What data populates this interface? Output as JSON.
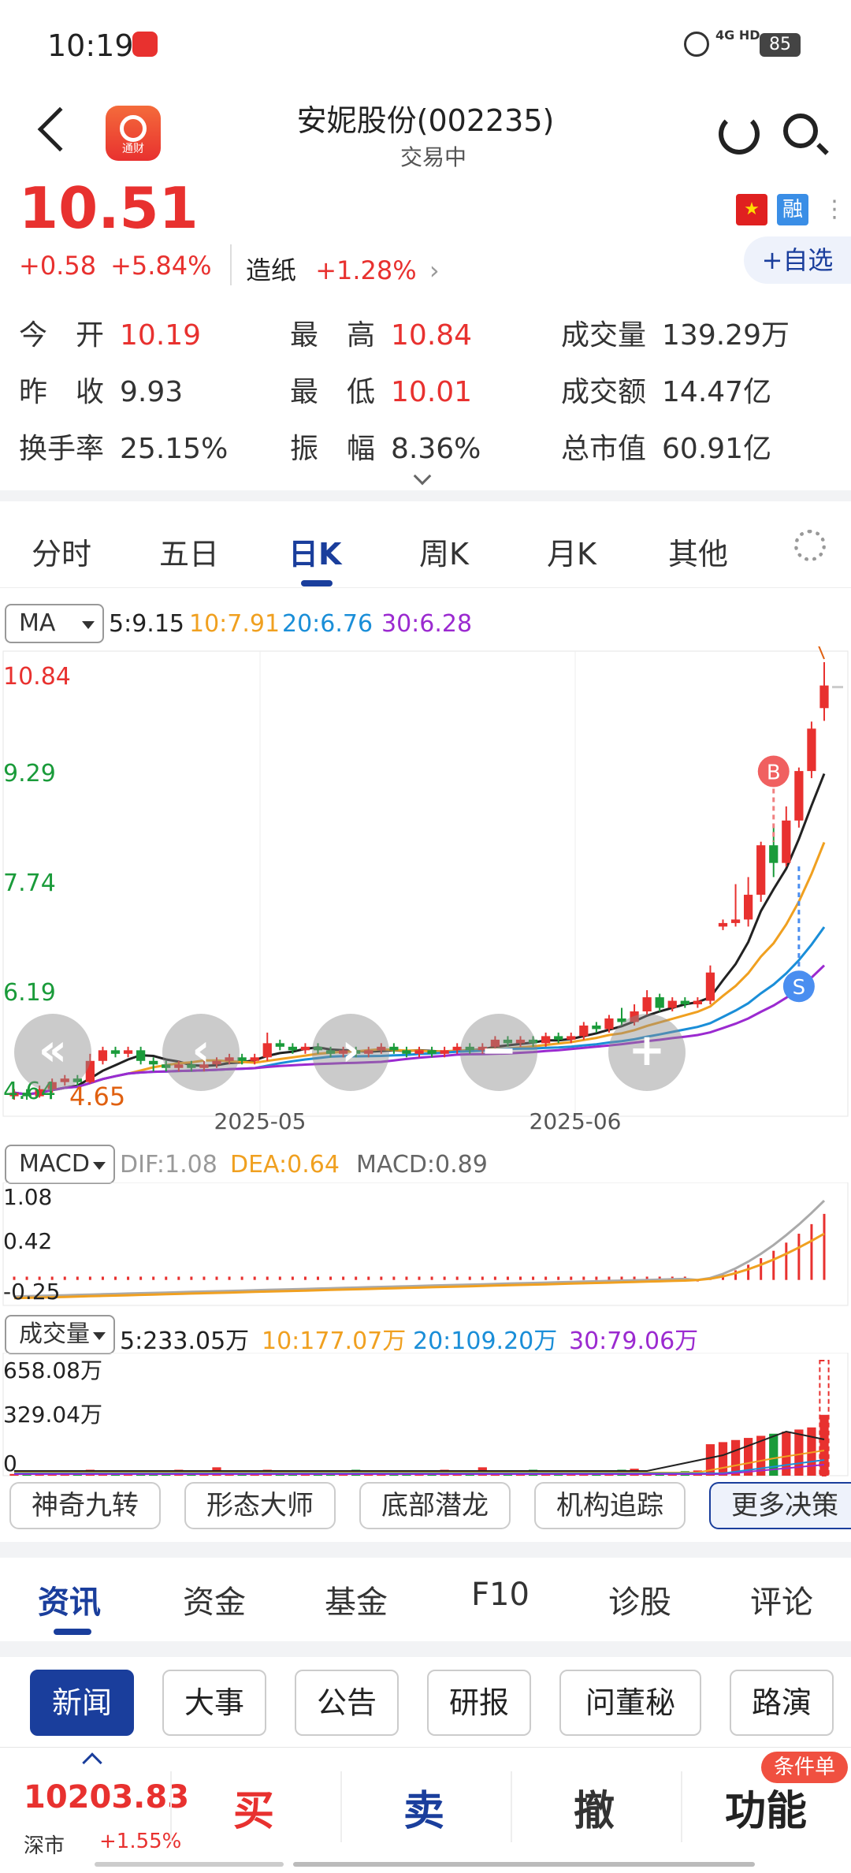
{
  "status": {
    "time": "10:19",
    "network": "4G HD",
    "battery": "85"
  },
  "header": {
    "title": "安妮股份(002235)",
    "subtitle": "交易中",
    "logo_text": "通财"
  },
  "quote": {
    "price": "10.51",
    "change": "+0.58",
    "change_pct": "+5.84%",
    "sector_name": "造纸",
    "sector_pct": "+1.28%",
    "rong": "融",
    "add_watch": "+自选",
    "stats": [
      {
        "label": "今　开",
        "value": "10.19",
        "color": "red"
      },
      {
        "label": "最　高",
        "value": "10.84",
        "color": "red"
      },
      {
        "label": "成交量",
        "value": "139.29万",
        "color": "plain"
      },
      {
        "label": "昨　收",
        "value": "9.93",
        "color": "plain"
      },
      {
        "label": "最　低",
        "value": "10.01",
        "color": "red"
      },
      {
        "label": "成交额",
        "value": "14.47亿",
        "color": "plain"
      },
      {
        "label": "换手率",
        "value": "25.15%",
        "color": "plain"
      },
      {
        "label": "振　幅",
        "value": "8.36%",
        "color": "plain"
      },
      {
        "label": "总市值",
        "value": "60.91亿",
        "color": "plain"
      }
    ]
  },
  "chart_tabs": [
    "分时",
    "五日",
    "日K",
    "周K",
    "月K",
    "其他"
  ],
  "ma": {
    "selector": "MA",
    "items": [
      {
        "text": "5:9.15",
        "color": "#222222"
      },
      {
        "text": "10:7.91",
        "color": "#f0a020"
      },
      {
        "text": "20:6.76",
        "color": "#1a8ed8"
      },
      {
        "text": "30:6.28",
        "color": "#9b2ad0"
      }
    ]
  },
  "chart_data": {
    "type": "candlestick",
    "price_axis": [
      "10.84",
      "9.29",
      "7.74",
      "6.19",
      "4.64"
    ],
    "date_axis": [
      "2025-05",
      "2025-06"
    ],
    "high_label": "10.84",
    "low_label": "4.65",
    "buy_marker": "B",
    "sell_marker": "S",
    "candles": [
      [
        4.7,
        4.75,
        4.65,
        4.8
      ],
      [
        4.75,
        4.7,
        4.65,
        4.8
      ],
      [
        4.7,
        4.8,
        4.68,
        4.85
      ],
      [
        4.8,
        4.9,
        4.75,
        4.95
      ],
      [
        4.9,
        4.95,
        4.85,
        5.0
      ],
      [
        4.95,
        4.9,
        4.85,
        5.0
      ],
      [
        4.9,
        5.2,
        4.88,
        5.3
      ],
      [
        5.2,
        5.35,
        5.15,
        5.4
      ],
      [
        5.35,
        5.3,
        5.25,
        5.4
      ],
      [
        5.3,
        5.35,
        5.25,
        5.4
      ],
      [
        5.35,
        5.2,
        5.15,
        5.4
      ],
      [
        5.2,
        5.15,
        5.05,
        5.25
      ],
      [
        5.15,
        5.1,
        5.05,
        5.2
      ],
      [
        5.1,
        5.15,
        5.05,
        5.2
      ],
      [
        5.15,
        5.1,
        5.05,
        5.2
      ],
      [
        5.1,
        5.15,
        5.05,
        5.2
      ],
      [
        5.15,
        5.2,
        5.1,
        5.25
      ],
      [
        5.2,
        5.25,
        5.15,
        5.3
      ],
      [
        5.25,
        5.2,
        5.15,
        5.3
      ],
      [
        5.2,
        5.25,
        5.15,
        5.3
      ],
      [
        5.25,
        5.45,
        5.2,
        5.6
      ],
      [
        5.45,
        5.4,
        5.35,
        5.5
      ],
      [
        5.4,
        5.35,
        5.3,
        5.45
      ],
      [
        5.35,
        5.4,
        5.3,
        5.45
      ],
      [
        5.4,
        5.35,
        5.3,
        5.45
      ],
      [
        5.35,
        5.3,
        5.25,
        5.4
      ],
      [
        5.3,
        5.35,
        5.25,
        5.4
      ],
      [
        5.35,
        5.3,
        5.25,
        5.4
      ],
      [
        5.3,
        5.35,
        5.25,
        5.4
      ],
      [
        5.35,
        5.4,
        5.3,
        5.45
      ],
      [
        5.4,
        5.35,
        5.3,
        5.45
      ],
      [
        5.35,
        5.3,
        5.25,
        5.4
      ],
      [
        5.3,
        5.35,
        5.25,
        5.4
      ],
      [
        5.35,
        5.3,
        5.25,
        5.4
      ],
      [
        5.3,
        5.35,
        5.25,
        5.4
      ],
      [
        5.35,
        5.4,
        5.3,
        5.45
      ],
      [
        5.4,
        5.35,
        5.3,
        5.45
      ],
      [
        5.35,
        5.4,
        5.3,
        5.45
      ],
      [
        5.4,
        5.5,
        5.35,
        5.55
      ],
      [
        5.5,
        5.45,
        5.4,
        5.55
      ],
      [
        5.45,
        5.5,
        5.4,
        5.55
      ],
      [
        5.5,
        5.45,
        5.4,
        5.55
      ],
      [
        5.45,
        5.55,
        5.4,
        5.6
      ],
      [
        5.55,
        5.5,
        5.45,
        5.6
      ],
      [
        5.5,
        5.55,
        5.45,
        5.6
      ],
      [
        5.55,
        5.7,
        5.5,
        5.75
      ],
      [
        5.7,
        5.65,
        5.6,
        5.75
      ],
      [
        5.65,
        5.8,
        5.6,
        5.85
      ],
      [
        5.8,
        5.75,
        5.7,
        5.95
      ],
      [
        5.75,
        5.9,
        5.7,
        6.0
      ],
      [
        5.9,
        6.1,
        5.85,
        6.2
      ],
      [
        6.1,
        5.95,
        5.9,
        6.15
      ],
      [
        5.95,
        6.05,
        5.9,
        6.1
      ],
      [
        6.05,
        6.0,
        5.95,
        6.1
      ],
      [
        6.0,
        6.05,
        5.95,
        6.1
      ],
      [
        6.05,
        6.45,
        6.0,
        6.55
      ],
      [
        7.1,
        7.15,
        7.05,
        7.2
      ],
      [
        7.15,
        7.2,
        7.1,
        7.7
      ],
      [
        7.2,
        7.55,
        7.1,
        7.8
      ],
      [
        7.55,
        8.25,
        7.45,
        8.3
      ],
      [
        8.25,
        8.0,
        7.8,
        8.55
      ],
      [
        8.0,
        8.6,
        7.95,
        8.8
      ],
      [
        8.6,
        9.3,
        8.5,
        9.35
      ],
      [
        9.3,
        9.9,
        9.2,
        10.0
      ],
      [
        10.19,
        10.51,
        10.01,
        10.84
      ]
    ],
    "macd": {
      "labels": {
        "sel": "MACD",
        "dif": "DIF:1.08",
        "dea": "DEA:0.64",
        "macd": "MACD:0.89"
      },
      "axis": [
        "1.08",
        "0.42",
        "-0.25"
      ]
    },
    "volume": {
      "labels": {
        "sel": "成交量",
        "v5": "5:233.05万",
        "v10": "10:177.07万",
        "v20": "20:109.20万",
        "v30": "30:79.06万"
      },
      "axis": [
        "658.08万",
        "329.04万",
        "0"
      ]
    }
  },
  "strategies": [
    "神奇九转",
    "形态大师",
    "底部潜龙",
    "机构追踪",
    "更多决策"
  ],
  "news_tabs": [
    "资讯",
    "资金",
    "基金",
    "F10",
    "诊股",
    "评论"
  ],
  "news_chips": [
    "新闻",
    "大事",
    "公告",
    "研报",
    "问董秘",
    "路演"
  ],
  "bottom": {
    "index_value": "10203.83",
    "index_name": "深市",
    "index_pct": "+1.55%",
    "buy": "买",
    "sell": "卖",
    "cancel": "撤",
    "func": "功能",
    "badge": "条件单"
  },
  "colors": {
    "up": "#e8312f",
    "down": "#1a9b3a",
    "brand": "#1a3e9c"
  }
}
